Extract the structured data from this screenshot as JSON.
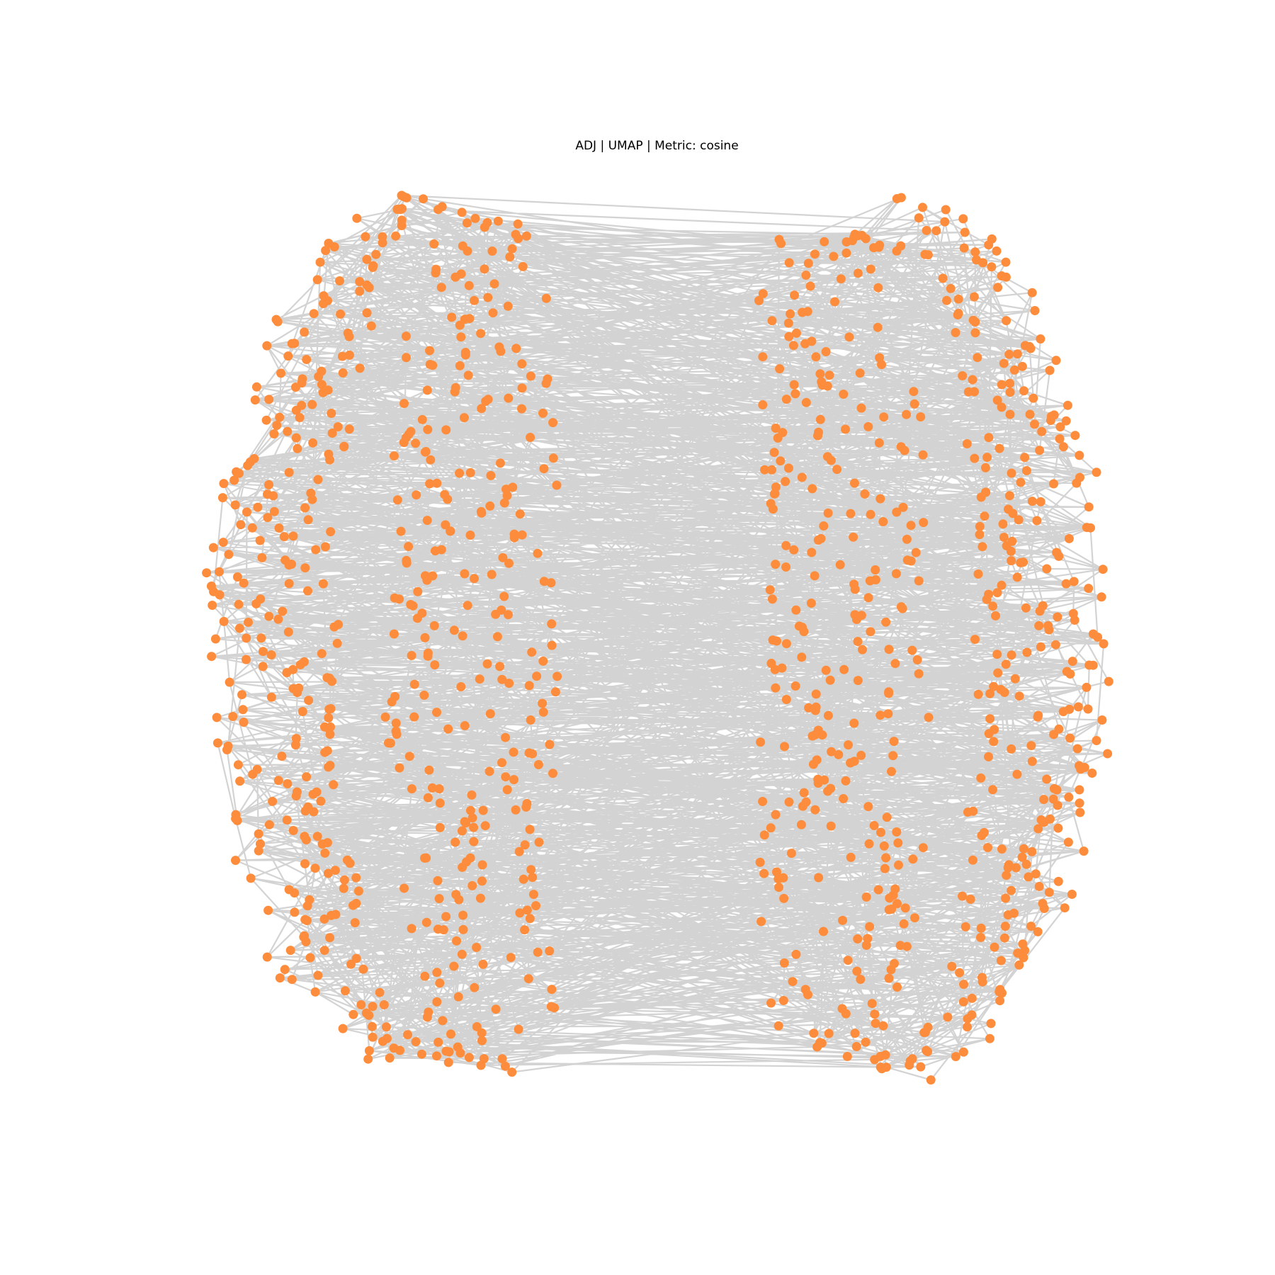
{
  "title": "ADJ | UMAP | Metric: cosine",
  "graph": {
    "layout": "UMAP",
    "metric": "cosine",
    "node_color": "#fd8d3c",
    "edge_color": "#d3d3d3",
    "background": "#ffffff"
  }
}
